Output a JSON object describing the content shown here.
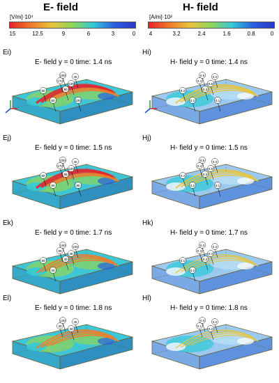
{
  "headers": {
    "e": "E- field",
    "h": "H- field"
  },
  "colorbars": {
    "e": {
      "unit": "[V/m]·10⁴",
      "ticks": [
        "15",
        "12.5",
        "9",
        "6",
        "3",
        "0"
      ]
    },
    "h": {
      "unit": "[A/m]·10²",
      "ticks": [
        "4",
        "3.2",
        "2.4",
        "1.6",
        "0.8",
        "0"
      ]
    }
  },
  "colors": {
    "red": "#e8202a",
    "orange": "#f07a2a",
    "yellow": "#e8c43a",
    "green": "#8ed65a",
    "cyan": "#33c9d8",
    "blue": "#2a5fe0",
    "navy": "#2a38c8"
  },
  "panels": [
    {
      "id": "Ei)",
      "caption": "E- field  y = 0  time: 1.4 ns",
      "labels": [
        "200",
        "45",
        "170",
        "120",
        "90",
        "60",
        "60",
        "100"
      ]
    },
    {
      "id": "Hi)",
      "caption": "H- field  y = 0  time: 1.4 ns",
      "labels": [
        "0.5",
        "0.2",
        "0.4",
        "0.6",
        "0.3",
        "0.4",
        "0.2",
        "0.1"
      ]
    },
    {
      "id": "Ej)",
      "caption": "E- field  y = 0  time: 1.5 ns",
      "labels": [
        "200",
        "45",
        "170",
        "120",
        "65",
        "60",
        "60",
        "80"
      ]
    },
    {
      "id": "Hj)",
      "caption": "H- field  y = 0  time: 1.5 ns",
      "labels": [
        "0.5",
        "0.3",
        "0.4",
        "0.5",
        "0.3",
        "0.4",
        "0.2",
        "0.1"
      ]
    },
    {
      "id": "Ek)",
      "caption": "E- field  y = 0  time: 1.7 ns",
      "labels": [
        "160",
        "100",
        "66",
        "45",
        "40",
        "60",
        "40"
      ]
    },
    {
      "id": "Hk)",
      "caption": "H- field  y = 0  time: 1.7 ns",
      "labels": [
        "0.3",
        "0.2",
        "0.3",
        "0.4",
        "0.2",
        "0.1",
        "0.2"
      ]
    },
    {
      "id": "El)",
      "caption": "E- field  y = 0  time: 1.8 ns",
      "labels": [
        "130",
        "45",
        "30",
        "40"
      ]
    },
    {
      "id": "Hl)",
      "caption": "H- field  y = 0  time: 1.8 ns",
      "labels": [
        "0.3",
        "0.2",
        "0.1",
        "0.2"
      ]
    }
  ]
}
